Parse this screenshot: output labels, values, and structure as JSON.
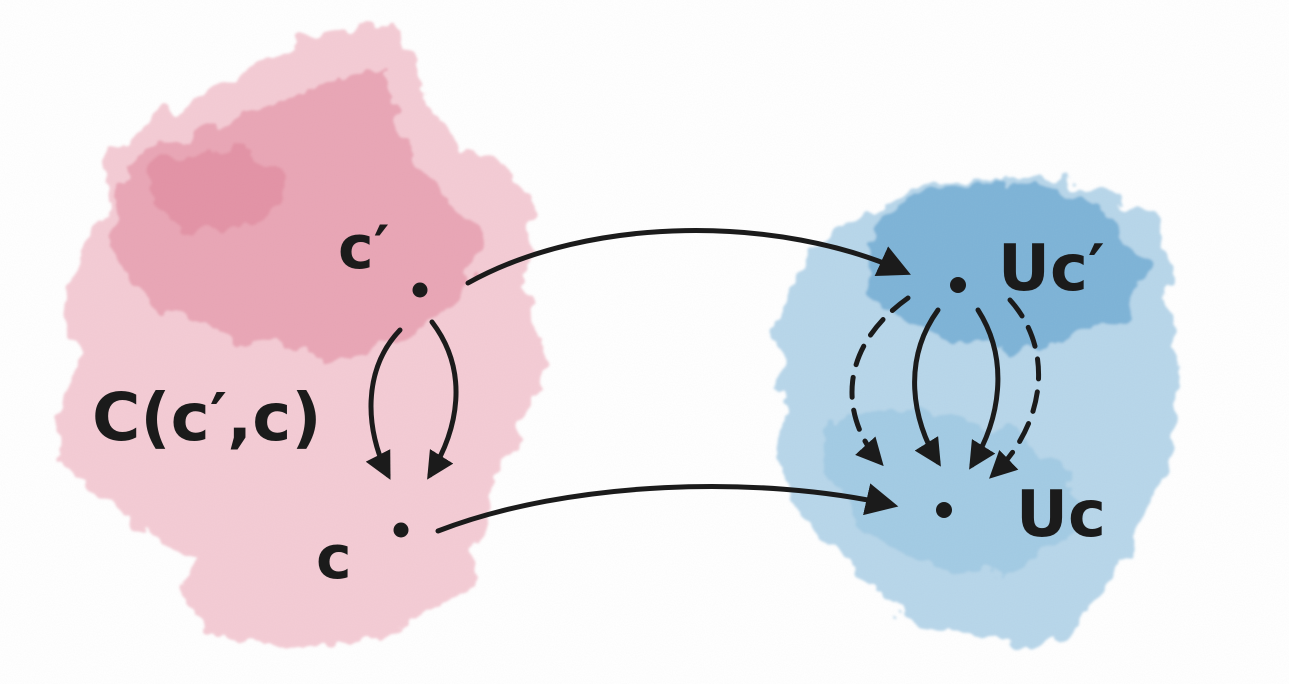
{
  "diagram": {
    "left_category": {
      "color": "#e48ca0",
      "objects": {
        "top": "c′",
        "bottom": "c"
      },
      "hom_label": "C(c′,c)"
    },
    "right_category": {
      "color": "#4f98c8",
      "objects": {
        "top": "Uc′",
        "bottom": "Uc"
      }
    },
    "functor_arrows": [
      {
        "from": "c′",
        "to": "Uc′",
        "style": "solid"
      },
      {
        "from": "c",
        "to": "Uc",
        "style": "solid"
      }
    ],
    "left_parallel_arrows": [
      {
        "from": "c′",
        "to": "c",
        "style": "solid"
      },
      {
        "from": "c′",
        "to": "c",
        "style": "solid"
      }
    ],
    "right_parallel_arrows": [
      {
        "from": "Uc′",
        "to": "Uc",
        "style": "dashed"
      },
      {
        "from": "Uc′",
        "to": "Uc",
        "style": "solid"
      },
      {
        "from": "Uc′",
        "to": "Uc",
        "style": "solid"
      },
      {
        "from": "Uc′",
        "to": "Uc",
        "style": "dashed"
      }
    ]
  }
}
